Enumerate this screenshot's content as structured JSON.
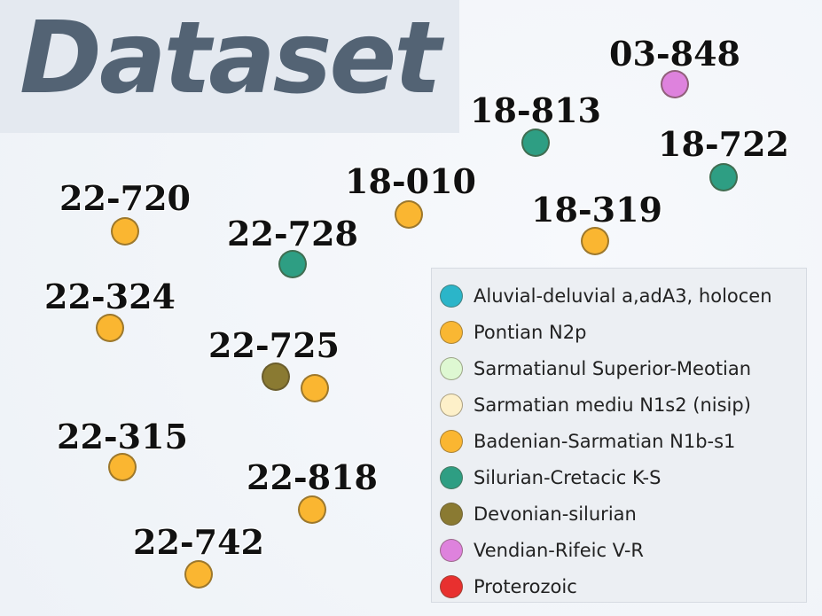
{
  "title": "Dataset",
  "markers": [
    {
      "label": "03-848",
      "category": "Vendian-Rifeic V-R"
    },
    {
      "label": "18-813",
      "category": "Silurian-Cretacic K-S"
    },
    {
      "label": "18-722",
      "category": "Silurian-Cretacic K-S"
    },
    {
      "label": "18-010",
      "category": "Badenian-Sarmatian N1b-s1"
    },
    {
      "label": "18-319",
      "category": "Badenian-Sarmatian N1b-s1"
    },
    {
      "label": "22-720",
      "category": "Badenian-Sarmatian N1b-s1"
    },
    {
      "label": "22-728",
      "category": "Silurian-Cretacic K-S"
    },
    {
      "label": "22-324",
      "category": "Badenian-Sarmatian N1b-s1"
    },
    {
      "label": "22-725",
      "category": "Devonian-silurian"
    },
    {
      "label": "",
      "category": "Badenian-Sarmatian N1b-s1"
    },
    {
      "label": "22-315",
      "category": "Badenian-Sarmatian N1b-s1"
    },
    {
      "label": "22-818",
      "category": "Badenian-Sarmatian N1b-s1"
    },
    {
      "label": "22-742",
      "category": "Badenian-Sarmatian N1b-s1"
    }
  ],
  "legend": [
    {
      "label": "Aluvial-deluvial a,adA3, holocen",
      "color": "#2bb5c9"
    },
    {
      "label": "Pontian N2p",
      "color": "#f9b733"
    },
    {
      "label": "Sarmatianul Superior-Meotian",
      "color": "#def8d2"
    },
    {
      "label": "Sarmatian mediu N1s2 (nisip)",
      "color": "#fdf0c9"
    },
    {
      "label": "Badenian-Sarmatian N1b-s1",
      "color": "#fab631"
    },
    {
      "label": "Silurian-Cretacic K-S",
      "color": "#2e9e83"
    },
    {
      "label": "Devonian-silurian",
      "color": "#8a7a32"
    },
    {
      "label": "Vendian-Rifeic V-R",
      "color": "#de82dd"
    },
    {
      "label": "Proterozoic",
      "color": "#e8302f"
    }
  ]
}
